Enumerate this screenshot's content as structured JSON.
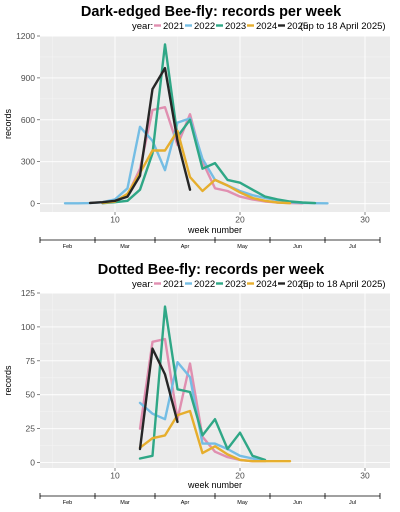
{
  "colors": {
    "2021": "#e08fb0",
    "2022": "#74bde4",
    "2023": "#2fa786",
    "2024": "#e6ae2d",
    "2025": "#262626",
    "panel": "#ebebeb"
  },
  "chart_data": [
    {
      "type": "line",
      "title": "Dark-edged Bee-fly: records per week",
      "legend_label": "year:",
      "note": "(up to 18 April 2025)",
      "xlabel": "week number",
      "ylabel": "records",
      "xlim": [
        4,
        32
      ],
      "ylim": [
        -60,
        1200
      ],
      "xticks": [
        10,
        20,
        30
      ],
      "yticks": [
        0,
        300,
        600,
        900,
        1200
      ],
      "months": [
        "Feb",
        "Mar",
        "Apr",
        "May",
        "Jun",
        "Jul"
      ],
      "series": [
        {
          "name": "2021",
          "x": [
            9,
            10,
            11,
            12,
            13,
            14,
            15,
            16,
            17,
            18,
            19,
            20,
            21,
            22,
            23,
            24,
            25
          ],
          "y": [
            5,
            20,
            60,
            250,
            670,
            690,
            420,
            640,
            300,
            110,
            90,
            50,
            30,
            15,
            8,
            4,
            2
          ]
        },
        {
          "name": "2022",
          "x": [
            6,
            7,
            8,
            9,
            10,
            11,
            12,
            13,
            14,
            15,
            16,
            17,
            18,
            19,
            20,
            21,
            22,
            23,
            24,
            25,
            26,
            27
          ],
          "y": [
            2,
            2,
            4,
            10,
            30,
            110,
            550,
            450,
            240,
            580,
            610,
            320,
            170,
            130,
            90,
            60,
            40,
            25,
            10,
            5,
            3,
            2
          ]
        },
        {
          "name": "2023",
          "x": [
            9,
            10,
            11,
            12,
            13,
            14,
            15,
            16,
            17,
            18,
            19,
            20,
            21,
            22,
            23,
            24,
            25,
            26
          ],
          "y": [
            3,
            10,
            20,
            100,
            360,
            1140,
            480,
            600,
            250,
            290,
            170,
            150,
            100,
            50,
            30,
            15,
            8,
            4
          ]
        },
        {
          "name": "2024",
          "x": [
            9,
            10,
            11,
            12,
            13,
            14,
            15,
            16,
            17,
            18,
            19,
            20,
            21,
            22,
            23,
            24
          ],
          "y": [
            5,
            15,
            70,
            220,
            380,
            380,
            520,
            190,
            90,
            170,
            130,
            80,
            40,
            20,
            8,
            3
          ]
        },
        {
          "name": "2025",
          "x": [
            8,
            9,
            10,
            11,
            12,
            13,
            14,
            15,
            16
          ],
          "y": [
            5,
            10,
            20,
            50,
            200,
            820,
            970,
            450,
            100
          ]
        }
      ]
    },
    {
      "type": "line",
      "title": "Dotted Bee-fly: records per week",
      "legend_label": "year:",
      "note": "(up to 18 April 2025)",
      "xlabel": "week number",
      "ylabel": "records",
      "xlim": [
        4,
        32
      ],
      "ylim": [
        -4,
        125
      ],
      "xticks": [
        10,
        20,
        30
      ],
      "yticks": [
        0,
        25,
        50,
        75,
        100,
        125
      ],
      "months": [
        "Feb",
        "Mar",
        "Apr",
        "May",
        "Jun",
        "Jul"
      ],
      "series": [
        {
          "name": "2021",
          "x": [
            12,
            13,
            14,
            15,
            16,
            17,
            18,
            19,
            20,
            21,
            22
          ],
          "y": [
            25,
            89,
            91,
            32,
            73,
            19,
            8,
            4,
            2,
            1,
            1
          ]
        },
        {
          "name": "2022",
          "x": [
            12,
            13,
            14,
            15,
            16,
            17,
            18,
            19,
            20,
            21,
            22
          ],
          "y": [
            44,
            36,
            32,
            74,
            63,
            14,
            14,
            10,
            5,
            3,
            1
          ]
        },
        {
          "name": "2023",
          "x": [
            12,
            13,
            14,
            15,
            16,
            17,
            18,
            19,
            20,
            21,
            22
          ],
          "y": [
            3,
            5,
            115,
            54,
            52,
            20,
            32,
            10,
            22,
            5,
            2
          ]
        },
        {
          "name": "2024",
          "x": [
            12,
            13,
            14,
            15,
            16,
            17,
            18,
            19,
            20,
            21,
            22,
            23,
            24
          ],
          "y": [
            11,
            18,
            20,
            35,
            38,
            7,
            12,
            6,
            2,
            1,
            1,
            1,
            1
          ]
        },
        {
          "name": "2025",
          "x": [
            12,
            13,
            14,
            15
          ],
          "y": [
            10,
            84,
            65,
            30
          ]
        }
      ]
    }
  ]
}
